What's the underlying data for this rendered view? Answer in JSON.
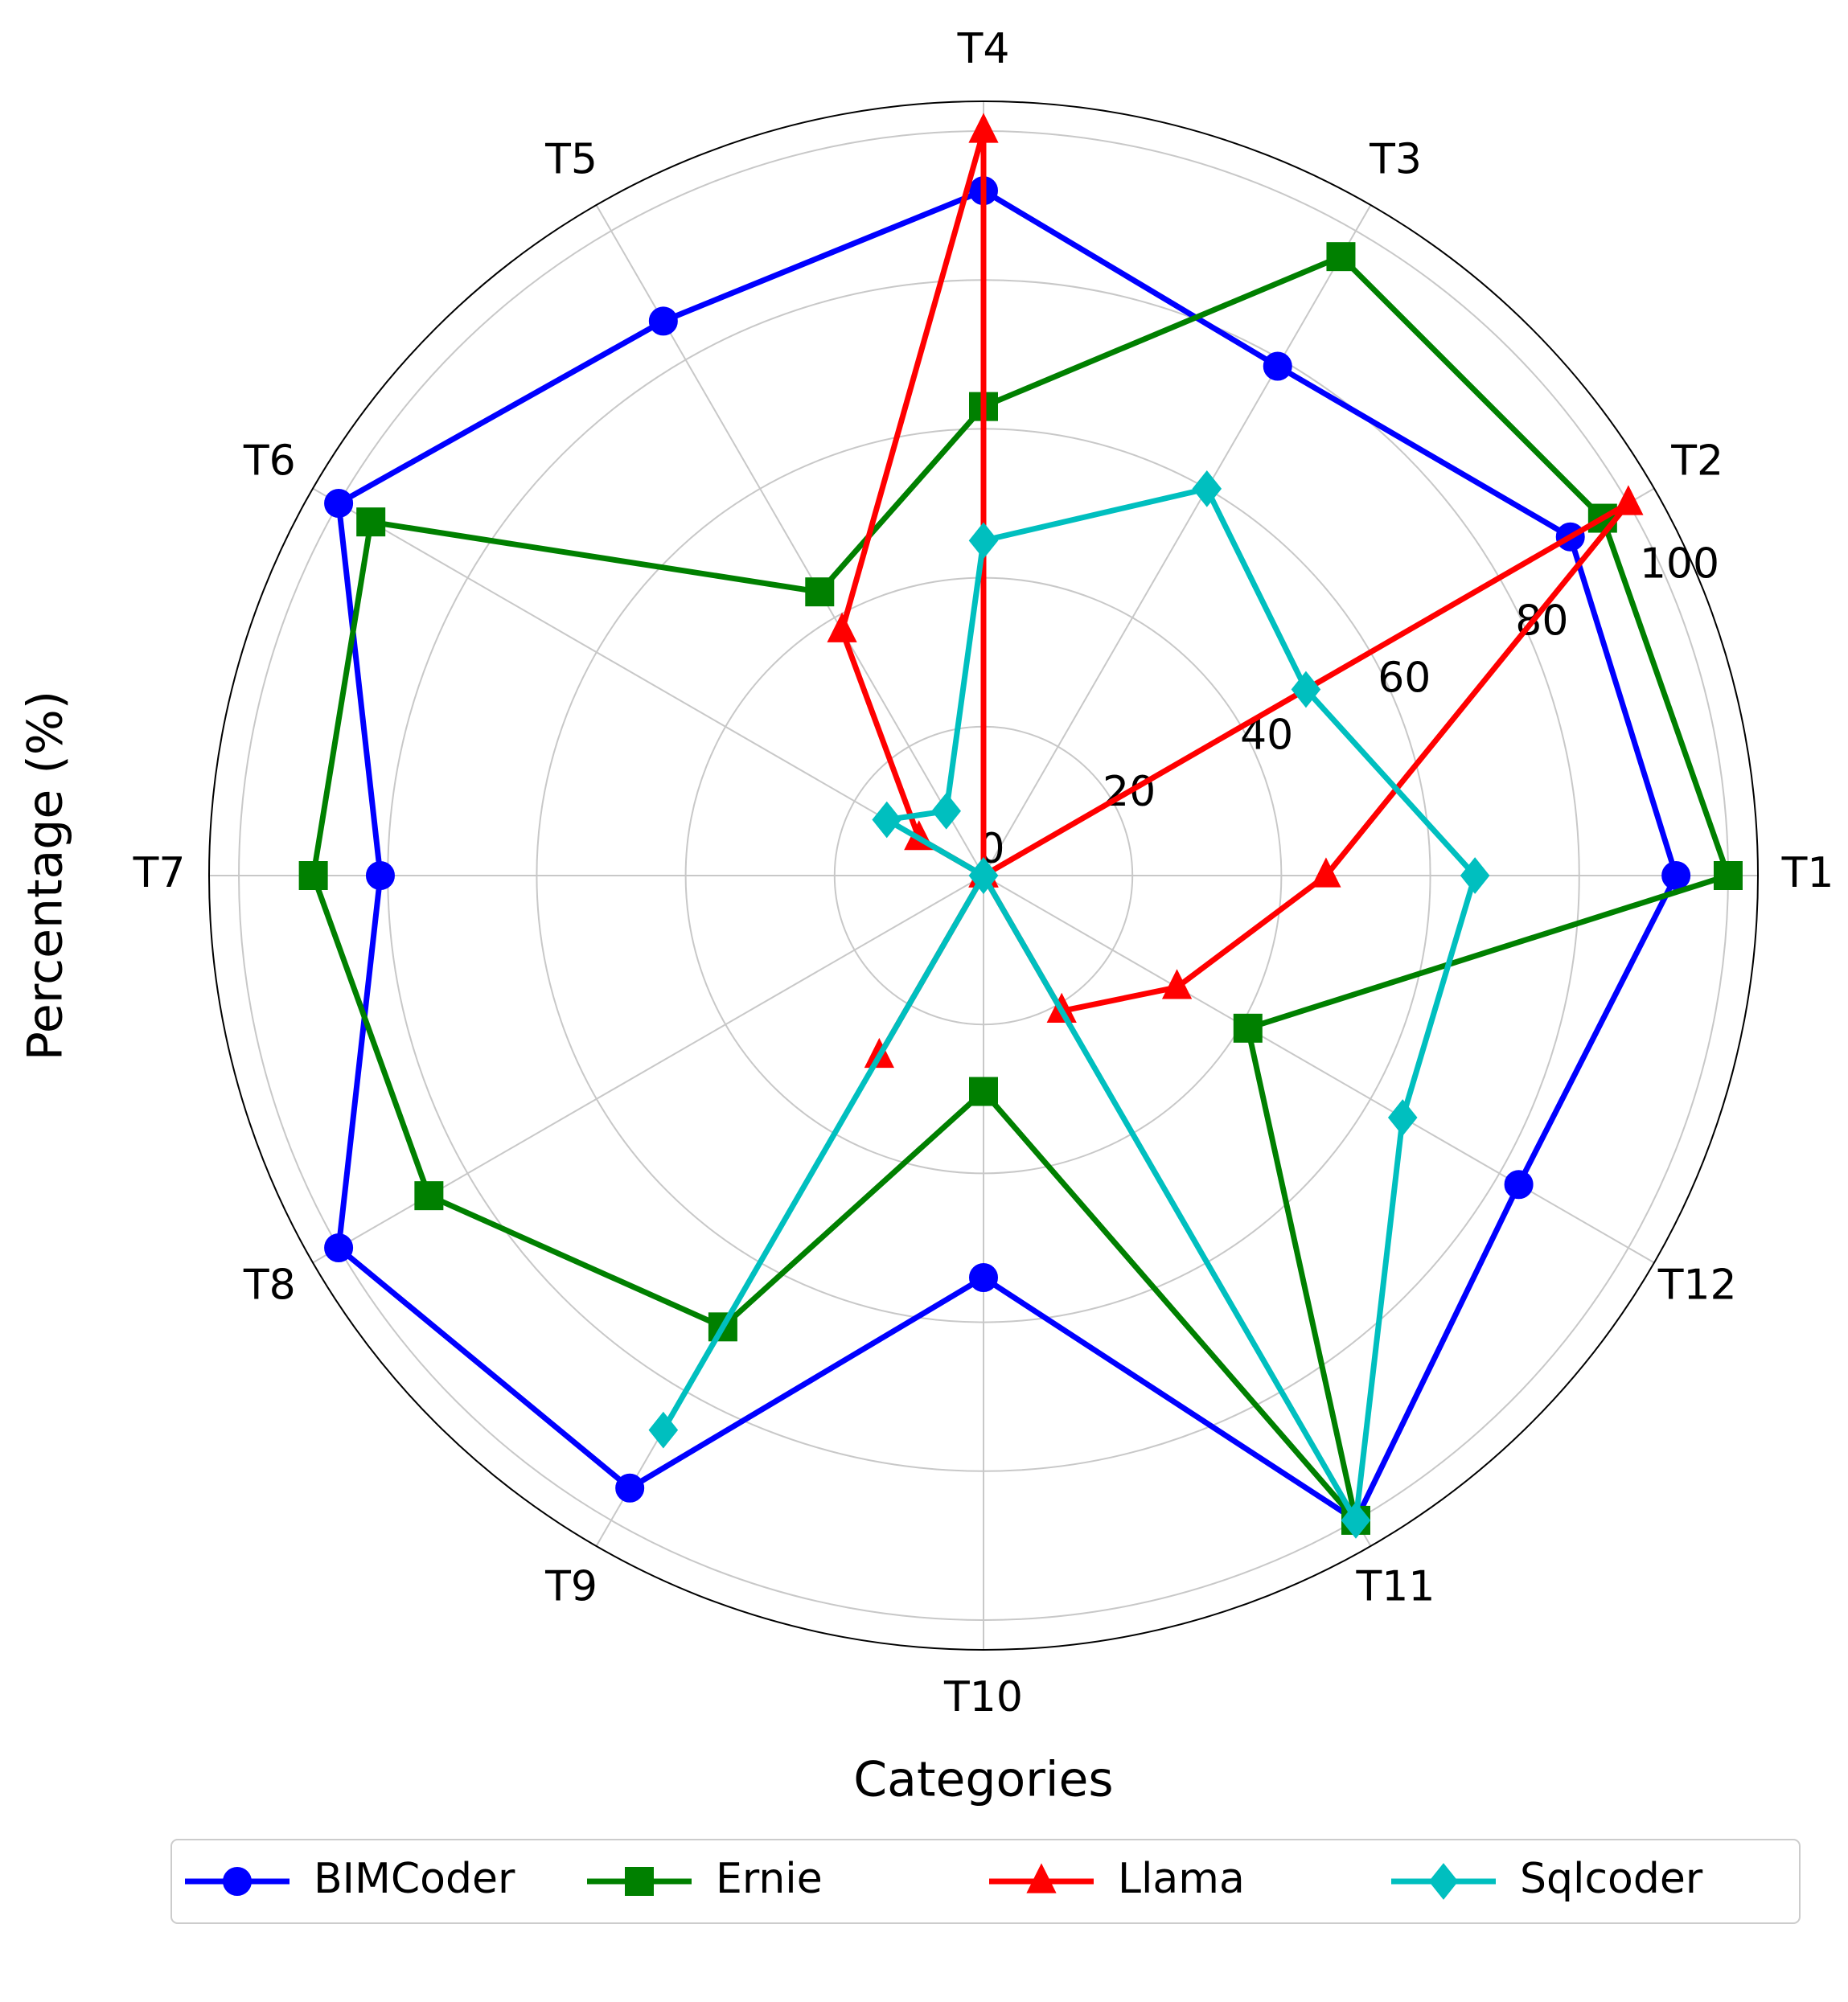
{
  "chart_data": {
    "type": "radar",
    "xlabel": "Categories",
    "ylabel": "Percentage (%)",
    "categories": [
      "T1",
      "T2",
      "T3",
      "T4",
      "T5",
      "T6",
      "T7",
      "T8",
      "T9",
      "T10",
      "T11",
      "T12"
    ],
    "series": [
      {
        "name": "BIMCoder",
        "color": "#0000ff",
        "marker": "circle",
        "values": [
          93,
          91,
          79,
          92,
          86,
          100,
          81,
          100,
          95,
          54,
          100,
          83
        ]
      },
      {
        "name": "Ernie",
        "color": "#008000",
        "marker": "square",
        "values": [
          100,
          96,
          96,
          63,
          44,
          95,
          90,
          86,
          70,
          29,
          100,
          41
        ]
      },
      {
        "name": "Llama",
        "color": "#ff0000",
        "marker": "triangle",
        "values": [
          46,
          100,
          0,
          100,
          38,
          10,
          0,
          0,
          28,
          0,
          21,
          30
        ]
      },
      {
        "name": "Sqlcoder",
        "color": "#00bfbf",
        "marker": "diamond",
        "values": [
          66,
          50,
          60,
          45,
          10,
          15,
          0,
          0,
          86,
          0,
          100,
          65
        ]
      }
    ],
    "ylim": [
      0,
      104
    ],
    "yticks": [
      0,
      20,
      40,
      60,
      80,
      100
    ],
    "grid": true,
    "legend": "bottom"
  }
}
